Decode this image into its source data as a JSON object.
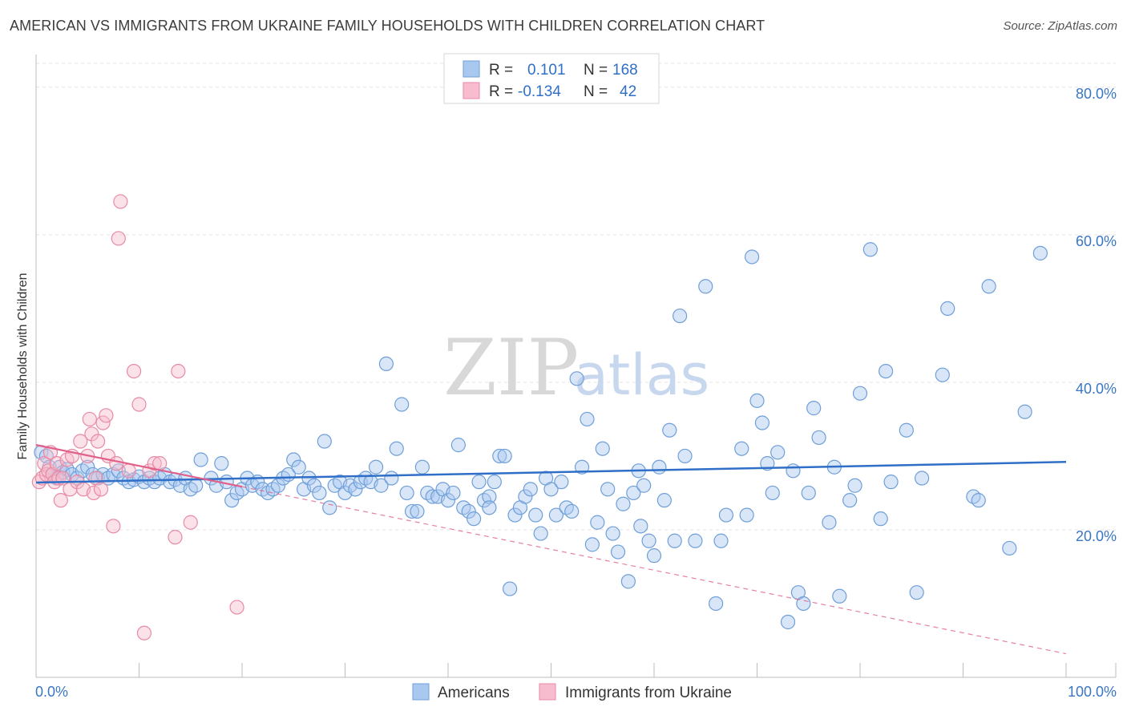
{
  "title": "AMERICAN VS IMMIGRANTS FROM UKRAINE FAMILY HOUSEHOLDS WITH CHILDREN CORRELATION CHART",
  "source": "Source: ZipAtlas.com",
  "watermark": {
    "zip": "ZIP",
    "atlas": "atlas"
  },
  "legend_top": [
    {
      "r_label": "R =",
      "r_value": "0.101",
      "n_label": "N =",
      "n_value": "168"
    },
    {
      "r_label": "R =",
      "r_value": "-0.134",
      "n_label": "N =",
      "n_value": "42"
    }
  ],
  "legend_bottom": [
    "Americans",
    "Immigrants from Ukraine"
  ],
  "colors": {
    "americans_fill": "#a9c8f0",
    "americans_stroke": "#6f9fd8",
    "americans_line": "#2f6fc7",
    "ukraine_fill": "#f7bccd",
    "ukraine_stroke": "#e88aa6",
    "ukraine_line": "#e0608a",
    "tick": "#3a76c4"
  },
  "chart_data": {
    "type": "scatter",
    "xlabel": "",
    "ylabel": "Family Households with Children",
    "xlim": [
      0,
      100
    ],
    "ylim": [
      0,
      84
    ],
    "x_tick_labels": [
      "0.0%",
      "100.0%"
    ],
    "y_ticks": [
      20,
      40,
      60,
      80
    ],
    "y_tick_labels": [
      "20.0%",
      "40.0%",
      "60.0%",
      "80.0%"
    ],
    "grid": true,
    "series": [
      {
        "name": "Americans",
        "trend": {
          "x": [
            0,
            100
          ],
          "y": [
            26.4,
            29.2
          ]
        },
        "points": [
          [
            0.5,
            30.5
          ],
          [
            1,
            30
          ],
          [
            1.3,
            28.5
          ],
          [
            1.6,
            27.5
          ],
          [
            2,
            27
          ],
          [
            2.3,
            28.5
          ],
          [
            2.6,
            27.8
          ],
          [
            3,
            28.2
          ],
          [
            3.5,
            27.5
          ],
          [
            4,
            27
          ],
          [
            4.5,
            28
          ],
          [
            5,
            28.5
          ],
          [
            5.5,
            27.5
          ],
          [
            6,
            27
          ],
          [
            6.5,
            27.5
          ],
          [
            7,
            27
          ],
          [
            7.5,
            27.5
          ],
          [
            8,
            28
          ],
          [
            8.5,
            27
          ],
          [
            9,
            26.5
          ],
          [
            9.5,
            26.8
          ],
          [
            10,
            27.2
          ],
          [
            10.5,
            26.5
          ],
          [
            11,
            27
          ],
          [
            11.5,
            26.5
          ],
          [
            12,
            27
          ],
          [
            12.5,
            27.5
          ],
          [
            13,
            26.5
          ],
          [
            13.5,
            26.8
          ],
          [
            14,
            26
          ],
          [
            14.5,
            27
          ],
          [
            15,
            25.5
          ],
          [
            15.5,
            26
          ],
          [
            16,
            29.5
          ],
          [
            17,
            27
          ],
          [
            17.5,
            26
          ],
          [
            18,
            29
          ],
          [
            18.5,
            26.5
          ],
          [
            19,
            24
          ],
          [
            19.5,
            25
          ],
          [
            20,
            25.5
          ],
          [
            20.5,
            27
          ],
          [
            21,
            26
          ],
          [
            21.5,
            26.5
          ],
          [
            22,
            25.5
          ],
          [
            22.5,
            25
          ],
          [
            23,
            25.5
          ],
          [
            23.5,
            26
          ],
          [
            24,
            27
          ],
          [
            24.5,
            27.5
          ],
          [
            25,
            29.5
          ],
          [
            25.5,
            28.5
          ],
          [
            26,
            25.5
          ],
          [
            26.5,
            27
          ],
          [
            27,
            26
          ],
          [
            27.5,
            25
          ],
          [
            28,
            32
          ],
          [
            28.5,
            23
          ],
          [
            29,
            26
          ],
          [
            29.5,
            26.5
          ],
          [
            30,
            25
          ],
          [
            30.5,
            26
          ],
          [
            31,
            25.5
          ],
          [
            31.5,
            26.5
          ],
          [
            32,
            27
          ],
          [
            32.5,
            26.5
          ],
          [
            33,
            28.5
          ],
          [
            33.5,
            26
          ],
          [
            34,
            42.5
          ],
          [
            34.5,
            27
          ],
          [
            35,
            31
          ],
          [
            35.5,
            37
          ],
          [
            36,
            25
          ],
          [
            36.5,
            22.5
          ],
          [
            37,
            22.5
          ],
          [
            37.5,
            28.5
          ],
          [
            38,
            25
          ],
          [
            38.5,
            24.5
          ],
          [
            39,
            24.5
          ],
          [
            39.5,
            25.5
          ],
          [
            40,
            24
          ],
          [
            40.5,
            25
          ],
          [
            41,
            31.5
          ],
          [
            41.5,
            23
          ],
          [
            42,
            22.5
          ],
          [
            42.5,
            21.5
          ],
          [
            43,
            26.5
          ],
          [
            43.5,
            24
          ],
          [
            44,
            24.5
          ],
          [
            44.5,
            26.5
          ],
          [
            45,
            30
          ],
          [
            45.5,
            30
          ],
          [
            46,
            12
          ],
          [
            46.5,
            22
          ],
          [
            47,
            23
          ],
          [
            47.5,
            24.5
          ],
          [
            48,
            25.5
          ],
          [
            48.5,
            22
          ],
          [
            49,
            19.5
          ],
          [
            49.5,
            27
          ],
          [
            50,
            25.5
          ],
          [
            50.5,
            22
          ],
          [
            51,
            26.5
          ],
          [
            51.5,
            23
          ],
          [
            52,
            22.5
          ],
          [
            52.5,
            40.5
          ],
          [
            53,
            28.5
          ],
          [
            53.5,
            35
          ],
          [
            54,
            18
          ],
          [
            54.5,
            21
          ],
          [
            55,
            31
          ],
          [
            55.5,
            25.5
          ],
          [
            56,
            19.5
          ],
          [
            56.5,
            17
          ],
          [
            57,
            23.5
          ],
          [
            57.5,
            13
          ],
          [
            58,
            25
          ],
          [
            58.5,
            28
          ],
          [
            59,
            26
          ],
          [
            59.5,
            18.5
          ],
          [
            60,
            16.5
          ],
          [
            60.5,
            28.5
          ],
          [
            61,
            24
          ],
          [
            61.5,
            33.5
          ],
          [
            62,
            18.5
          ],
          [
            62.5,
            49
          ],
          [
            63,
            30
          ],
          [
            64,
            18.5
          ],
          [
            65,
            53
          ],
          [
            66,
            10
          ],
          [
            66.5,
            18.5
          ],
          [
            67,
            22
          ],
          [
            68.5,
            31
          ],
          [
            69,
            22
          ],
          [
            69.5,
            57
          ],
          [
            70,
            37.5
          ],
          [
            70.5,
            34.5
          ],
          [
            71,
            29
          ],
          [
            71.5,
            25
          ],
          [
            72,
            30.5
          ],
          [
            73,
            7.5
          ],
          [
            73.5,
            28
          ],
          [
            74,
            11.5
          ],
          [
            74.5,
            10
          ],
          [
            75,
            25
          ],
          [
            75.5,
            36.5
          ],
          [
            76,
            32.5
          ],
          [
            77,
            21
          ],
          [
            77.5,
            28.5
          ],
          [
            78,
            11
          ],
          [
            79,
            24
          ],
          [
            80,
            38.5
          ],
          [
            81,
            58
          ],
          [
            82,
            21.5
          ],
          [
            82.5,
            41.5
          ],
          [
            83,
            26.5
          ],
          [
            84.5,
            33.5
          ],
          [
            85.5,
            11.5
          ],
          [
            88,
            41
          ],
          [
            88.5,
            50
          ],
          [
            91,
            24.5
          ],
          [
            92.5,
            53
          ],
          [
            94.5,
            17.5
          ],
          [
            97.5,
            57.5
          ],
          [
            91.5,
            24
          ],
          [
            96,
            36
          ],
          [
            86,
            27
          ],
          [
            79.5,
            26
          ],
          [
            58.7,
            20.5
          ],
          [
            44,
            23
          ]
        ]
      },
      {
        "name": "Immigrants from Ukraine",
        "trend": {
          "x": [
            0,
            100
          ],
          "y": [
            31.5,
            3.2
          ],
          "solid_until_x": 20
        },
        "points": [
          [
            0.3,
            26.5
          ],
          [
            0.6,
            27
          ],
          [
            0.8,
            29
          ],
          [
            1,
            27.5
          ],
          [
            1.2,
            28
          ],
          [
            1.4,
            30.5
          ],
          [
            1.6,
            27.5
          ],
          [
            1.8,
            26.5
          ],
          [
            2,
            29
          ],
          [
            2.2,
            27
          ],
          [
            2.4,
            24
          ],
          [
            2.6,
            27
          ],
          [
            3,
            29.5
          ],
          [
            3.3,
            25.5
          ],
          [
            3.5,
            30
          ],
          [
            4,
            26.5
          ],
          [
            4.3,
            32
          ],
          [
            4.6,
            25.5
          ],
          [
            5,
            30
          ],
          [
            5.2,
            35
          ],
          [
            5.4,
            33
          ],
          [
            5.6,
            25
          ],
          [
            5.8,
            27
          ],
          [
            6,
            32
          ],
          [
            6.3,
            25.5
          ],
          [
            6.5,
            34.5
          ],
          [
            6.8,
            35.5
          ],
          [
            7,
            30
          ],
          [
            7.5,
            20.5
          ],
          [
            7.8,
            29
          ],
          [
            8,
            59.5
          ],
          [
            8.2,
            64.5
          ],
          [
            9,
            28
          ],
          [
            9.5,
            41.5
          ],
          [
            10,
            37
          ],
          [
            10.5,
            6
          ],
          [
            11,
            28
          ],
          [
            11.5,
            29
          ],
          [
            12,
            29
          ],
          [
            13.5,
            19
          ],
          [
            13.8,
            41.5
          ],
          [
            15,
            21
          ],
          [
            19.5,
            9.5
          ]
        ]
      }
    ]
  }
}
